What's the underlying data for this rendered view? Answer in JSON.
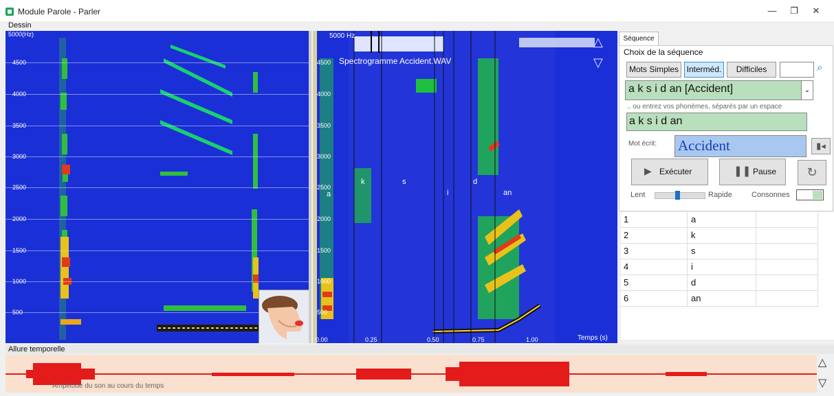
{
  "window": {
    "title": "Module Parole - Parler",
    "minimize_glyph": "—",
    "maximize_glyph": "❐",
    "close_glyph": "✕"
  },
  "menu": {
    "dessin": "Dessin"
  },
  "left_spectrogram": {
    "top_label": "5000(Hz)",
    "y_labels": [
      "4500",
      "4000",
      "3500",
      "3000",
      "2500",
      "2000",
      "1500",
      "1000",
      "500"
    ]
  },
  "right_spectrogram": {
    "title": "Spectrogramme Accident.WAV",
    "hz_label": "5000 Hz",
    "y_labels": [
      "4500",
      "4000",
      "3500",
      "3000",
      "2500",
      "2000",
      "1500",
      "1000",
      "500"
    ],
    "x_labels": [
      "0.00",
      "0.25",
      "0.50",
      "0.75",
      "1.00"
    ],
    "x_axis_label": "Temps (s)",
    "phoneme_markers": [
      "a",
      "k",
      "s",
      "i",
      "d",
      "an"
    ],
    "up_glyph": "△",
    "down_glyph": "▽"
  },
  "sequence": {
    "tab": "Séquence",
    "group_label": "Choix de la séquence",
    "btn_simple": "Mots Simples",
    "btn_intermed": "Interméd.",
    "btn_difficile": "Difficiles",
    "search_value": "",
    "selected": "a k s i d an [Accident]",
    "hint": ".. ou entrez vos phonèmes, séparés par un espace",
    "phonemes_value": "a k s i d an",
    "written_label": "Mot écrit:",
    "written_value": "Accident",
    "execute": "Exécuter",
    "pause": "Pause",
    "speed_slow": "Lent",
    "speed_fast": "Rapide",
    "speed_fraction": 0.45,
    "consonnes": "Consonnes"
  },
  "phoneme_table": [
    {
      "n": "1",
      "p": "a"
    },
    {
      "n": "2",
      "p": "k"
    },
    {
      "n": "3",
      "p": "s"
    },
    {
      "n": "4",
      "p": "i"
    },
    {
      "n": "5",
      "p": "d"
    },
    {
      "n": "6",
      "p": "an"
    }
  ],
  "allure": {
    "label": "Allure temporelle",
    "caption": "Amplitude du son au cours du temps",
    "up_glyph": "△",
    "down_glyph": "▽"
  },
  "colors": {
    "spectro_bg": "#1b2fd6",
    "wave": "#e31b1b",
    "wave_bg": "#fae0cf",
    "green_field": "#b9dfbd",
    "blue_field": "#a8c8f0"
  }
}
